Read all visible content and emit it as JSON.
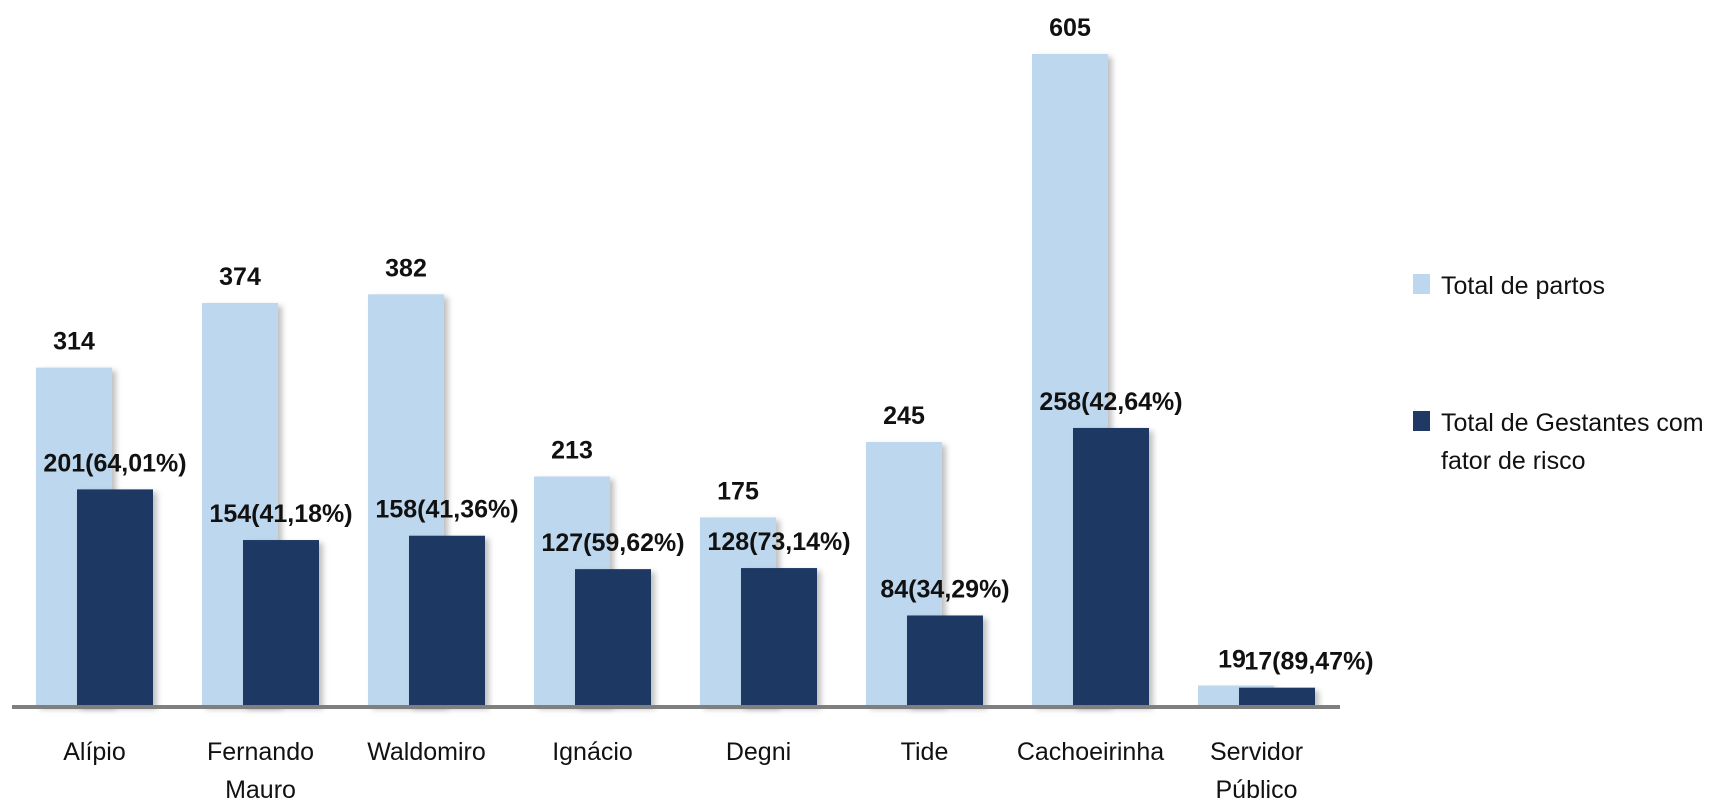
{
  "chart_data": {
    "type": "bar",
    "categories": [
      [
        "Alípio"
      ],
      [
        "Fernando",
        "Mauro"
      ],
      [
        "Waldomiro"
      ],
      [
        "Ignácio"
      ],
      [
        "Degni"
      ],
      [
        "Tide"
      ],
      [
        "Cachoeirinha"
      ],
      [
        "Servidor",
        "Público"
      ]
    ],
    "series": [
      {
        "name": "Total de partos",
        "legend_lines": [
          "Total de partos"
        ],
        "color": "#bdd7ee",
        "values": [
          314,
          374,
          382,
          213,
          175,
          245,
          605,
          19
        ],
        "labels": [
          "314",
          "374",
          "382",
          "213",
          "175",
          "245",
          "605",
          "19"
        ]
      },
      {
        "name": "Total de Gestantes com fator de risco",
        "legend_lines": [
          "Total de Gestantes com",
          "fator de risco"
        ],
        "color": "#1f3864",
        "values": [
          201,
          154,
          158,
          127,
          128,
          84,
          258,
          17
        ],
        "labels": [
          "201(64,01%)",
          "154(41,18%)",
          "158(41,36%)",
          "127(59,62%)",
          "128(73,14%)",
          "84(34,29%)",
          "258(42,64%)",
          "17(89,47%)"
        ]
      }
    ],
    "ylim": [
      0,
      605
    ],
    "grid": false,
    "legend_position": "right",
    "axis_color": "#7f7f7f"
  }
}
